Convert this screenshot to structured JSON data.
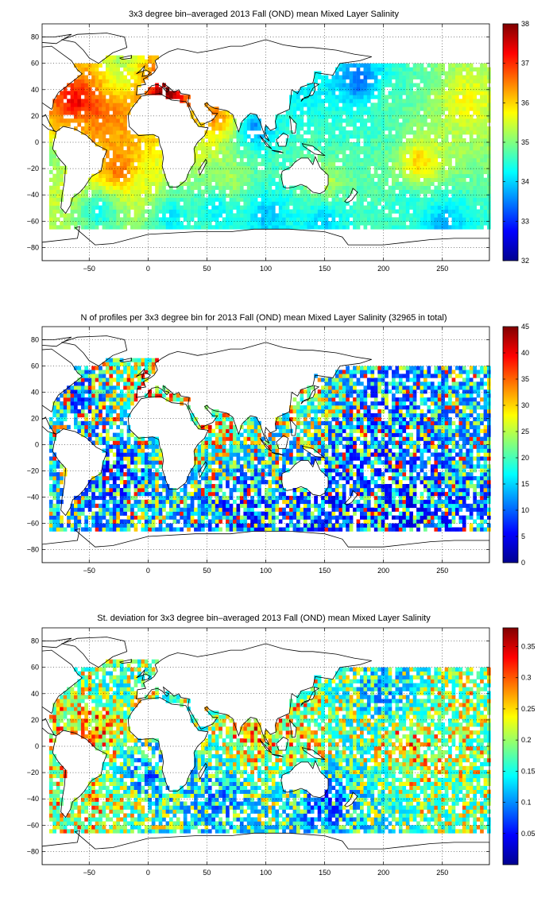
{
  "figure": {
    "colormap": "jet",
    "colormap_stops": [
      "#00008f",
      "#0000ff",
      "#0080ff",
      "#00ffff",
      "#80ff80",
      "#ffff00",
      "#ff8000",
      "#ff0000",
      "#800000"
    ]
  },
  "chart_data": [
    {
      "type": "heatmap",
      "title": "3x3 degree bin–averaged 2013 Fall (OND) mean Mixed Layer Salinity",
      "xlabel": "",
      "ylabel": "",
      "xlim": [
        -90,
        290
      ],
      "ylim": [
        -90,
        90
      ],
      "xticks": [
        -50,
        0,
        50,
        100,
        150,
        200,
        250
      ],
      "yticks": [
        -80,
        -60,
        -40,
        -20,
        0,
        20,
        40,
        60,
        80
      ],
      "grid": true,
      "colorbar": {
        "range": [
          32,
          38
        ],
        "ticks": [
          32,
          33,
          34,
          35,
          36,
          37,
          38
        ]
      },
      "bin_size_deg": 3,
      "regions_lon_lat_value": [
        [
          -60,
          30,
          38.0
        ],
        [
          -45,
          25,
          37.2
        ],
        [
          -55,
          15,
          36.0
        ],
        [
          -30,
          25,
          36.5
        ],
        [
          -25,
          45,
          35.3
        ],
        [
          -25,
          60,
          35.0
        ],
        [
          15,
          38,
          38.5
        ],
        [
          60,
          20,
          36.8
        ],
        [
          90,
          12,
          33.2
        ],
        [
          130,
          40,
          34.0
        ],
        [
          180,
          45,
          33.0
        ],
        [
          200,
          30,
          34.8
        ],
        [
          170,
          10,
          34.5
        ],
        [
          200,
          10,
          34.6
        ],
        [
          230,
          -15,
          36.3
        ],
        [
          -25,
          -20,
          37.0
        ],
        [
          0,
          -30,
          35.5
        ],
        [
          70,
          -30,
          35.4
        ],
        [
          150,
          -30,
          35.5
        ],
        [
          220,
          -45,
          34.4
        ],
        [
          60,
          -50,
          34.0
        ],
        [
          100,
          -55,
          33.7
        ],
        [
          -40,
          -50,
          34.0
        ],
        [
          20,
          -55,
          33.9
        ],
        [
          150,
          -60,
          33.8
        ],
        [
          250,
          -60,
          33.7
        ],
        [
          -80,
          -10,
          34.8
        ],
        [
          270,
          30,
          35.8
        ]
      ]
    },
    {
      "type": "heatmap",
      "title": "N of profiles per 3x3 degree bin for 2013 Fall (OND) mean Mixed Layer Salinity  (32965 in total)",
      "xlabel": "",
      "ylabel": "",
      "xlim": [
        -90,
        290
      ],
      "ylim": [
        -90,
        90
      ],
      "xticks": [
        -50,
        0,
        50,
        100,
        150,
        200,
        250
      ],
      "yticks": [
        -80,
        -60,
        -40,
        -20,
        0,
        20,
        40,
        60,
        80
      ],
      "grid": true,
      "total_profiles": 32965,
      "colorbar": {
        "range": [
          0,
          45
        ],
        "ticks": [
          0,
          5,
          10,
          15,
          20,
          25,
          30,
          35,
          40,
          45
        ]
      },
      "bin_size_deg": 3,
      "regions_lon_lat_value": [
        [
          -60,
          30,
          8
        ],
        [
          0,
          40,
          42
        ],
        [
          130,
          30,
          35
        ],
        [
          60,
          15,
          38
        ],
        [
          -80,
          20,
          30
        ],
        [
          200,
          30,
          12
        ],
        [
          170,
          0,
          10
        ],
        [
          -25,
          -20,
          8
        ],
        [
          80,
          -45,
          6
        ],
        [
          150,
          -50,
          7
        ],
        [
          220,
          -50,
          6
        ],
        [
          270,
          20,
          20
        ],
        [
          30,
          38,
          40
        ]
      ]
    },
    {
      "type": "heatmap",
      "title": "St. deviation for 3x3 degree bin–averaged 2013 Fall (OND) mean Mixed Layer Salinity",
      "xlabel": "",
      "ylabel": "",
      "xlim": [
        -90,
        290
      ],
      "ylim": [
        -90,
        90
      ],
      "xticks": [
        -50,
        0,
        50,
        100,
        150,
        200,
        250
      ],
      "yticks": [
        -80,
        -60,
        -40,
        -20,
        0,
        20,
        40,
        60,
        80
      ],
      "grid": true,
      "colorbar": {
        "range": [
          0,
          0.38
        ],
        "ticks": [
          0.05,
          0.1,
          0.15,
          0.2,
          0.25,
          0.3,
          0.35
        ]
      },
      "bin_size_deg": 3,
      "regions_lon_lat_value": [
        [
          -45,
          15,
          0.38
        ],
        [
          -80,
          5,
          0.3
        ],
        [
          90,
          15,
          0.38
        ],
        [
          130,
          5,
          0.3
        ],
        [
          220,
          5,
          0.33
        ],
        [
          -40,
          -45,
          0.3
        ],
        [
          150,
          -40,
          0.06
        ],
        [
          60,
          -40,
          0.1
        ],
        [
          200,
          40,
          0.12
        ],
        [
          -30,
          45,
          0.2
        ],
        [
          0,
          -20,
          0.08
        ],
        [
          270,
          30,
          0.25
        ]
      ]
    }
  ]
}
